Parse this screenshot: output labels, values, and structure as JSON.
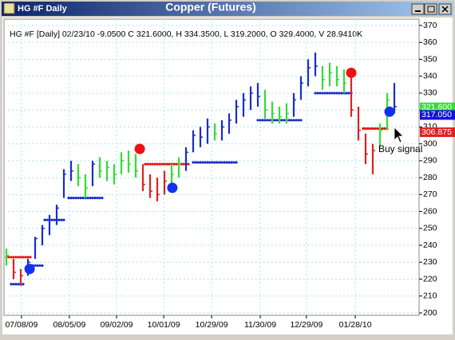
{
  "window": {
    "title": "HG #F Daily",
    "caption": "Copper (Futures)"
  },
  "chart_data": {
    "type": "ohlc",
    "info": "HG #F [Daily] 02/23/10 -9.0500 C 321.6000, H 334.3500, L 319.2000, O 329.4000, V 28.9410K",
    "x": [
      0,
      3,
      6,
      9,
      12,
      15,
      18,
      21,
      24,
      27,
      30,
      33,
      36,
      39,
      42,
      45,
      48,
      51,
      54,
      57,
      60,
      63,
      66,
      69,
      72,
      75,
      78,
      81,
      84,
      87,
      90,
      93,
      96,
      99,
      102,
      105,
      108,
      111,
      114,
      117,
      120,
      123,
      126,
      129,
      132,
      135,
      138,
      141,
      144,
      147,
      150,
      153,
      156,
      159,
      162
    ],
    "high": [
      238,
      232,
      226,
      232,
      245,
      252,
      258,
      264,
      285,
      290,
      288,
      282,
      290,
      292,
      290,
      288,
      295,
      296,
      294,
      288,
      282,
      280,
      284,
      288,
      292,
      298,
      308,
      310,
      315,
      312,
      314,
      318,
      326,
      330,
      334,
      336,
      332,
      325,
      322,
      324,
      330,
      340,
      350,
      354,
      346,
      348,
      346,
      344,
      340,
      322,
      306,
      300,
      312,
      330,
      336
    ],
    "low": [
      228,
      220,
      216,
      222,
      232,
      240,
      246,
      252,
      268,
      278,
      275,
      268,
      275,
      280,
      278,
      276,
      282,
      283,
      280,
      272,
      268,
      266,
      270,
      274,
      280,
      284,
      295,
      298,
      300,
      302,
      302,
      306,
      312,
      316,
      320,
      322,
      315,
      312,
      312,
      312,
      316,
      326,
      334,
      340,
      332,
      334,
      334,
      330,
      316,
      302,
      288,
      282,
      298,
      308,
      318
    ],
    "close": [
      234,
      224,
      222,
      230,
      244,
      250,
      255,
      262,
      282,
      284,
      280,
      274,
      288,
      284,
      286,
      282,
      290,
      288,
      284,
      276,
      272,
      270,
      278,
      282,
      288,
      295,
      305,
      304,
      310,
      306,
      310,
      314,
      322,
      326,
      330,
      328,
      320,
      318,
      316,
      318,
      326,
      336,
      345,
      346,
      338,
      342,
      338,
      336,
      320,
      308,
      294,
      296,
      308,
      326,
      322
    ],
    "bar_colors": [
      "#33dd33",
      "#dd2222",
      "#dd2222",
      "#1a2ec8",
      "#1a2ec8",
      "#1a2ec8",
      "#1a2ec8",
      "#1a2ec8",
      "#1a2ec8",
      "#1a2ec8",
      "#33dd33",
      "#33dd33",
      "#1a2ec8",
      "#33dd33",
      "#33dd33",
      "#33dd33",
      "#33dd33",
      "#33dd33",
      "#33dd33",
      "#dd2222",
      "#dd2222",
      "#dd2222",
      "#dd2222",
      "#33dd33",
      "#33dd33",
      "#1a2ec8",
      "#1a2ec8",
      "#1a2ec8",
      "#1a2ec8",
      "#33dd33",
      "#1a2ec8",
      "#1a2ec8",
      "#1a2ec8",
      "#1a2ec8",
      "#1a2ec8",
      "#1a2ec8",
      "#33dd33",
      "#33dd33",
      "#33dd33",
      "#33dd33",
      "#1a2ec8",
      "#1a2ec8",
      "#1a2ec8",
      "#1a2ec8",
      "#33dd33",
      "#33dd33",
      "#33dd33",
      "#33dd33",
      "#dd2222",
      "#dd2222",
      "#dd2222",
      "#dd2222",
      "#33dd33",
      "#33dd33",
      "#1a2ec8"
    ],
    "stops": [
      {
        "from": 0,
        "to": 10,
        "value": 233,
        "color": "#ee1111"
      },
      {
        "from": 2,
        "to": 7,
        "value": 217,
        "color": "#1a2ec8"
      },
      {
        "from": 10,
        "to": 15,
        "value": 228,
        "color": "#1a2ec8"
      },
      {
        "from": 16,
        "to": 24,
        "value": 255,
        "color": "#1a2ec8"
      },
      {
        "from": 26,
        "to": 40,
        "value": 268,
        "color": "#1a2ec8"
      },
      {
        "from": 58,
        "to": 76,
        "value": 288,
        "color": "#ee1111"
      },
      {
        "from": 78,
        "to": 96,
        "value": 289,
        "color": "#1a2ec8"
      },
      {
        "from": 105,
        "to": 123,
        "value": 314,
        "color": "#1a2ec8"
      },
      {
        "from": 129,
        "to": 144,
        "value": 330,
        "color": "#1a2ec8"
      },
      {
        "from": 149,
        "to": 159,
        "value": 309,
        "color": "#ee1111"
      }
    ],
    "signals": [
      {
        "x": 9.7,
        "value": 226,
        "color": "#1133ee"
      },
      {
        "x": 55.7,
        "value": 297,
        "color": "#ee1111"
      },
      {
        "x": 69.3,
        "value": 274,
        "color": "#1133ee"
      },
      {
        "x": 144,
        "value": 342,
        "color": "#ee1111"
      },
      {
        "x": 160,
        "value": 319,
        "color": "#1133ee"
      }
    ],
    "price_labels": [
      {
        "value": 321.6,
        "label": "321.600",
        "color": "#33dd33"
      },
      {
        "value": 317.05,
        "label": "317.050",
        "color": "#1111dd"
      },
      {
        "value": 306.875,
        "label": "306.875",
        "color": "#dd2222"
      }
    ],
    "annotation": "Buy signal",
    "xlim": [
      0,
      163
    ],
    "ylim": [
      200,
      370
    ],
    "xticks": [
      {
        "value": 6.3,
        "label": "07/08/09"
      },
      {
        "value": 26.3,
        "label": "08/05/09"
      },
      {
        "value": 46,
        "label": "09/02/09"
      },
      {
        "value": 65.7,
        "label": "10/01/09"
      },
      {
        "value": 85.7,
        "label": "10/29/09"
      },
      {
        "value": 106,
        "label": "11/30/09"
      },
      {
        "value": 125.3,
        "label": "12/29/09"
      },
      {
        "value": 145.7,
        "label": "01/28/10"
      }
    ],
    "yticks": [
      200,
      210,
      220,
      230,
      240,
      250,
      260,
      270,
      280,
      290,
      300,
      310,
      320,
      330,
      340,
      350,
      360,
      370
    ],
    "grid": true
  }
}
